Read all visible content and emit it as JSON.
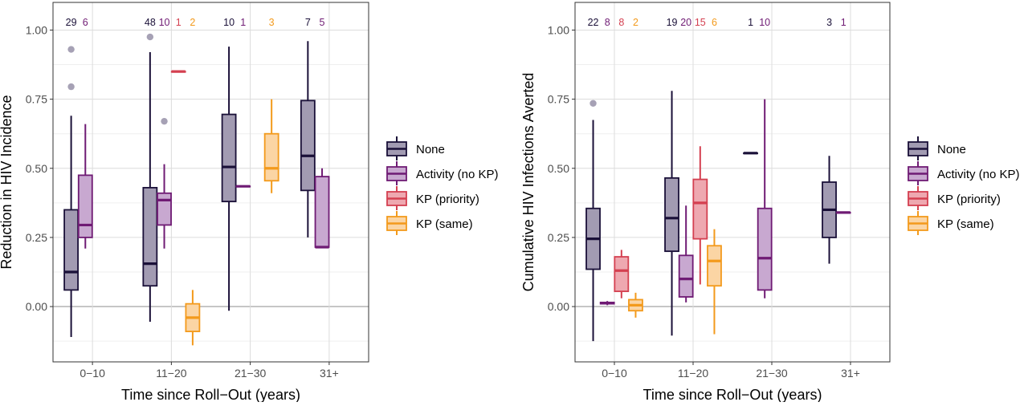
{
  "chart_data": [
    {
      "type": "boxplot",
      "ylabel": "Reduction in HIV Incidence",
      "xlabel": "Time since Roll−Out (years)",
      "categories": [
        "0−10",
        "11−20",
        "21−30",
        "31+"
      ],
      "ylim": [
        -0.2,
        1.1
      ],
      "yticks": [
        0,
        0.25,
        0.5,
        0.75,
        1.0
      ],
      "ytick_labels": [
        "0.00",
        "0.25",
        "0.50",
        "0.75",
        "1.00"
      ],
      "grid": true,
      "legend_position": "right",
      "series": [
        {
          "name": "None",
          "boxes": [
            {
              "category": "0−10",
              "n": "29",
              "whisker_low": -0.11,
              "q1": 0.06,
              "median": 0.125,
              "q3": 0.35,
              "whisker_high": 0.69,
              "outliers": [
                0.795,
                0.93
              ]
            },
            {
              "category": "11−20",
              "n": "48",
              "whisker_low": -0.055,
              "q1": 0.075,
              "median": 0.155,
              "q3": 0.43,
              "whisker_high": 0.92,
              "outliers": [
                0.975
              ]
            },
            {
              "category": "21−30",
              "n": "10",
              "whisker_low": -0.015,
              "q1": 0.38,
              "median": 0.505,
              "q3": 0.695,
              "whisker_high": 0.94,
              "outliers": []
            },
            {
              "category": "31+",
              "n": "7",
              "whisker_low": 0.25,
              "q1": 0.42,
              "median": 0.545,
              "q3": 0.745,
              "whisker_high": 0.96,
              "outliers": []
            }
          ]
        },
        {
          "name": "Activity (no KP)",
          "boxes": [
            {
              "category": "0−10",
              "n": "6",
              "whisker_low": 0.21,
              "q1": 0.25,
              "median": 0.295,
              "q3": 0.475,
              "whisker_high": 0.66,
              "outliers": []
            },
            {
              "category": "11−20",
              "n": "10",
              "whisker_low": 0.21,
              "q1": 0.295,
              "median": 0.385,
              "q3": 0.41,
              "whisker_high": 0.515,
              "outliers": [
                0.67
              ]
            },
            {
              "category": "21−30",
              "n": "1",
              "whisker_low": 0.435,
              "q1": 0.435,
              "median": 0.435,
              "q3": 0.435,
              "whisker_high": 0.435,
              "outliers": []
            },
            {
              "category": "31+",
              "n": "5",
              "whisker_low": 0.215,
              "q1": 0.215,
              "median": 0.215,
              "q3": 0.47,
              "whisker_high": 0.5,
              "outliers": []
            }
          ]
        },
        {
          "name": "KP (priority)",
          "boxes": [
            {
              "category": "11−20",
              "n": "1",
              "whisker_low": 0.85,
              "q1": 0.85,
              "median": 0.85,
              "q3": 0.85,
              "whisker_high": 0.85,
              "outliers": []
            }
          ]
        },
        {
          "name": "KP (same)",
          "boxes": [
            {
              "category": "11−20",
              "n": "2",
              "whisker_low": -0.14,
              "q1": -0.09,
              "median": -0.04,
              "q3": 0.01,
              "whisker_high": 0.06,
              "outliers": []
            },
            {
              "category": "21−30",
              "n": "3",
              "whisker_low": 0.41,
              "q1": 0.455,
              "median": 0.5,
              "q3": 0.625,
              "whisker_high": 0.75,
              "outliers": []
            }
          ]
        }
      ]
    },
    {
      "type": "boxplot",
      "ylabel": "Cumulative HIV Infections Averted",
      "xlabel": "Time since Roll−Out (years)",
      "categories": [
        "0−10",
        "11−20",
        "21−30",
        "31+"
      ],
      "ylim": [
        -0.2,
        1.1
      ],
      "yticks": [
        0,
        0.25,
        0.5,
        0.75,
        1.0
      ],
      "ytick_labels": [
        "0.00",
        "0.25",
        "0.50",
        "0.75",
        "1.00"
      ],
      "grid": true,
      "legend_position": "right",
      "series": [
        {
          "name": "None",
          "boxes": [
            {
              "category": "0−10",
              "n": "22",
              "whisker_low": -0.125,
              "q1": 0.135,
              "median": 0.245,
              "q3": 0.355,
              "whisker_high": 0.675,
              "outliers": [
                0.735
              ]
            },
            {
              "category": "11−20",
              "n": "19",
              "whisker_low": -0.105,
              "q1": 0.2,
              "median": 0.32,
              "q3": 0.465,
              "whisker_high": 0.78,
              "outliers": []
            },
            {
              "category": "21−30",
              "n": "1",
              "whisker_low": 0.555,
              "q1": 0.555,
              "median": 0.555,
              "q3": 0.555,
              "whisker_high": 0.555,
              "outliers": []
            },
            {
              "category": "31+",
              "n": "3",
              "whisker_low": 0.155,
              "q1": 0.25,
              "median": 0.35,
              "q3": 0.45,
              "whisker_high": 0.545,
              "outliers": []
            }
          ]
        },
        {
          "name": "Activity (no KP)",
          "boxes": [
            {
              "category": "0−10",
              "n": "8",
              "whisker_low": 0.005,
              "q1": 0.01,
              "median": 0.012,
              "q3": 0.015,
              "whisker_high": 0.02,
              "outliers": []
            },
            {
              "category": "11−20",
              "n": "20",
              "whisker_low": 0.015,
              "q1": 0.035,
              "median": 0.1,
              "q3": 0.185,
              "whisker_high": 0.365,
              "outliers": []
            },
            {
              "category": "21−30",
              "n": "10",
              "whisker_low": 0.03,
              "q1": 0.06,
              "median": 0.175,
              "q3": 0.355,
              "whisker_high": 0.75,
              "outliers": []
            },
            {
              "category": "31+",
              "n": "1",
              "whisker_low": 0.34,
              "q1": 0.34,
              "median": 0.34,
              "q3": 0.34,
              "whisker_high": 0.34,
              "outliers": []
            }
          ]
        },
        {
          "name": "KP (priority)",
          "boxes": [
            {
              "category": "0−10",
              "n": "8",
              "whisker_low": 0.03,
              "q1": 0.055,
              "median": 0.13,
              "q3": 0.18,
              "whisker_high": 0.205,
              "outliers": []
            },
            {
              "category": "11−20",
              "n": "15",
              "whisker_low": 0.08,
              "q1": 0.245,
              "median": 0.375,
              "q3": 0.46,
              "whisker_high": 0.58,
              "outliers": []
            }
          ]
        },
        {
          "name": "KP (same)",
          "boxes": [
            {
              "category": "0−10",
              "n": "2",
              "whisker_low": -0.04,
              "q1": -0.015,
              "median": 0.005,
              "q3": 0.025,
              "whisker_high": 0.05,
              "outliers": []
            },
            {
              "category": "11−20",
              "n": "6",
              "whisker_low": -0.1,
              "q1": 0.075,
              "median": 0.165,
              "q3": 0.22,
              "whisker_high": 0.28,
              "outliers": []
            }
          ]
        }
      ]
    }
  ],
  "colors": {
    "None": {
      "stroke": "#1a1038",
      "fill": "#a29bb2"
    },
    "Activity (no KP)": {
      "stroke": "#6f1b74",
      "fill": "#c8a8d0"
    },
    "KP (priority)": {
      "stroke": "#d44050",
      "fill": "#eea8b0"
    },
    "KP (same)": {
      "stroke": "#f39a1c",
      "fill": "#fbd5a4"
    },
    "outlier": "#9690a8",
    "grid_major": "#dcdcdc",
    "grid_minor": "#efefef",
    "zero_line": "#b9b9b9",
    "panel_border": "#333333"
  }
}
